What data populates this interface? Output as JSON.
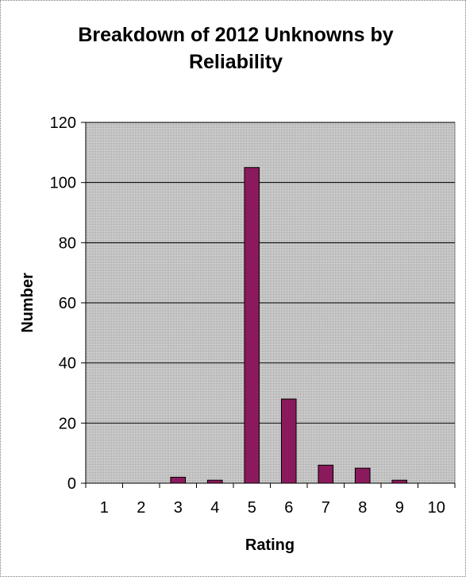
{
  "chart_data": {
    "type": "bar",
    "title_lines": [
      "Breakdown of 2012 Unknowns by",
      "Reliability"
    ],
    "xlabel": "Rating",
    "ylabel": "Number",
    "categories": [
      "1",
      "2",
      "3",
      "4",
      "5",
      "6",
      "7",
      "8",
      "9",
      "10"
    ],
    "values": [
      0,
      0,
      2,
      1,
      105,
      28,
      6,
      5,
      1,
      0
    ],
    "ylim": [
      0,
      120
    ],
    "yticks": [
      0,
      20,
      40,
      60,
      80,
      100,
      120
    ],
    "grid": true,
    "legend": "none",
    "colors": {
      "bar_fill": "#8B1A5C",
      "bar_stroke": "#000000",
      "plot_background": "#C0C0C0",
      "gridline": "#000000"
    }
  }
}
